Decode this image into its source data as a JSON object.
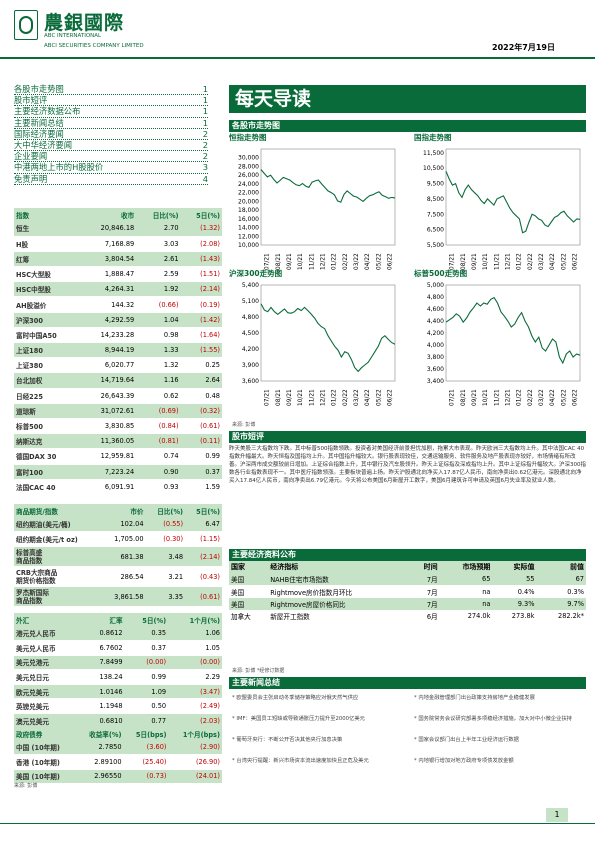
{
  "header": {
    "brand_cn": "農銀國際",
    "brand_en1": "ABC INTERNATIONAL",
    "brand_en2": "ABCI SECURITIES COMPANY LIMITED",
    "date": "2022年7月19日"
  },
  "toc": [
    {
      "t": "各股市走势图",
      "p": "1"
    },
    {
      "t": "股市短评",
      "p": "1"
    },
    {
      "t": "主要经济数据公布",
      "p": "1"
    },
    {
      "t": "主要新闻总结",
      "p": "1"
    },
    {
      "t": "国际经济要闻",
      "p": "2"
    },
    {
      "t": "大中华经济要闻",
      "p": "2"
    },
    {
      "t": "企业要闻",
      "p": "2"
    },
    {
      "t": "中港两地上市的H股股价",
      "p": "3"
    },
    {
      "t": "免责声明",
      "p": "4"
    }
  ],
  "title": "每天导读",
  "indices": {
    "headers": [
      "指数",
      "收市",
      "日比(%)",
      "5日(%)"
    ],
    "rows": [
      [
        "恒生",
        "20,846.18",
        "2.70",
        "(1.32)"
      ],
      [
        "H股",
        "7,168.89",
        "3.03",
        "(2.08)"
      ],
      [
        "红筹",
        "3,804.54",
        "2.61",
        "(1.43)"
      ],
      [
        "HSC大型股",
        "1,888.47",
        "2.59",
        "(1.51)"
      ],
      [
        "HSC中型股",
        "4,264.31",
        "1.92",
        "(2.14)"
      ],
      [
        "AH股溢价",
        "144.32",
        "(0.66)",
        "(0.19)"
      ],
      [
        "沪深300",
        "4,292.59",
        "1.04",
        "(1.42)"
      ],
      [
        "富时中国A50",
        "14,233.28",
        "0.98",
        "(1.64)"
      ],
      [
        "上证180",
        "8,944.19",
        "1.33",
        "(1.55)"
      ],
      [
        "上证380",
        "6,020.77",
        "1.32",
        "0.25"
      ],
      [
        "台北加权",
        "14,719.64",
        "1.16",
        "2.64"
      ],
      [
        "日经225",
        "26,643.39",
        "0.62",
        "0.48"
      ],
      [
        "道琼斯",
        "31,072.61",
        "(0.69)",
        "(0.32)"
      ],
      [
        "标普500",
        "3,830.85",
        "(0.84)",
        "(0.61)"
      ],
      [
        "纳斯达克",
        "11,360.05",
        "(0.81)",
        "(0.11)"
      ],
      [
        "德国DAX 30",
        "12,959.81",
        "0.74",
        "0.99"
      ],
      [
        "富时100",
        "7,223.24",
        "0.90",
        "0.37"
      ],
      [
        "法国CAC 40",
        "6,091.91",
        "0.93",
        "1.59"
      ]
    ]
  },
  "commodities": {
    "headers": [
      "商品期货/指数",
      "市价",
      "日比(%)",
      "5日(%)"
    ],
    "rows": [
      [
        "纽约期油(美元/桶)",
        "102.04",
        "(0.55)",
        "6.47"
      ],
      [
        "纽约期金(美元/t oz)",
        "1,705.00",
        "(0.30)",
        "(1.15)"
      ],
      [
        "标普高盛\n商品指数",
        "681.38",
        "3.48",
        "(2.14)"
      ],
      [
        "CRB大宗商品\n期货价格指数",
        "286.54",
        "3.21",
        "(0.43)"
      ],
      [
        "罗杰斯国际\n商品指数",
        "3,861.58",
        "3.35",
        "(0.61)"
      ]
    ]
  },
  "fx": {
    "headers": [
      "外汇",
      "汇率",
      "5日(%)",
      "1个月(%)"
    ],
    "rows": [
      [
        "港元兑人民币",
        "0.8612",
        "0.35",
        "1.06"
      ],
      [
        "美元兑人民币",
        "6.7602",
        "0.37",
        "1.05"
      ],
      [
        "美元兑港元",
        "7.8499",
        "(0.00)",
        "(0.00)"
      ],
      [
        "美元兑日元",
        "138.24",
        "0.99",
        "2.29"
      ],
      [
        "欧元兑美元",
        "1.0146",
        "1.09",
        "(3.47)"
      ],
      [
        "英镑兑美元",
        "1.1948",
        "0.50",
        "(2.49)"
      ],
      [
        "澳元兑美元",
        "0.6810",
        "0.77",
        "(2.03)"
      ]
    ]
  },
  "bonds": {
    "headers": [
      "政府债券",
      "收益率(%)",
      "5日(bps)",
      "1个月(bps)"
    ],
    "rows": [
      [
        "中国 (10年期)",
        "2.7850",
        "(3.60)",
        "(2.90)"
      ],
      [
        "香港 (10年期)",
        "2.89100",
        "(25.40)",
        "(26.90)"
      ],
      [
        "美国 (10年期)",
        "2.96550",
        "(0.73)",
        "(24.01)"
      ]
    ]
  },
  "left_note": "来源: 彭博",
  "market_section": "各股市走势图",
  "charts": [
    {
      "title": "恒指走势图",
      "ylim": [
        10000,
        32000
      ],
      "yticks": [
        "30,000",
        "28,000",
        "26,000",
        "24,000",
        "22,000",
        "20,000",
        "18,000",
        "16,000",
        "14,000",
        "12,000",
        "10,000"
      ],
      "xticks": [
        "07/21",
        "08/21",
        "09/21",
        "10/21",
        "11/21",
        "12/21",
        "01/22",
        "02/22",
        "03/22",
        "04/22",
        "05/22",
        "06/22"
      ],
      "values": [
        27300,
        26400,
        25600,
        26000,
        25000,
        24200,
        24800,
        25500,
        25200,
        24900,
        24300,
        23800,
        23600,
        24100,
        23500,
        23200,
        24400,
        24700,
        24900,
        24000,
        23200,
        22400,
        22000,
        21500,
        20100,
        19800,
        21600,
        22400,
        21800,
        21200,
        21000,
        20500,
        20000,
        20700,
        21300,
        21500,
        21900,
        22200,
        21400,
        21100,
        20700,
        20900,
        20800
      ]
    },
    {
      "title": "国指走势图",
      "ylim": [
        5500,
        11750
      ],
      "yticks": [
        "11,500",
        "10,500",
        "9,500",
        "8,500",
        "7,500",
        "6,500",
        "5,500"
      ],
      "xticks": [
        "07/21",
        "08/21",
        "09/21",
        "10/21",
        "11/21",
        "12/21",
        "01/22",
        "02/22",
        "03/22",
        "04/22",
        "05/22",
        "06/22"
      ],
      "values": [
        10300,
        9800,
        9400,
        9500,
        8900,
        8600,
        9100,
        9400,
        9100,
        8900,
        8700,
        8400,
        8200,
        8500,
        8300,
        8100,
        8500,
        8600,
        8700,
        8300,
        7900,
        7600,
        7400,
        7200,
        6300,
        6400,
        7000,
        7500,
        7400,
        7200,
        7100,
        6800,
        6700,
        7000,
        7300,
        7400,
        7600,
        7700,
        7400,
        7200,
        7000,
        7200,
        7170
      ]
    },
    {
      "title": "沪深300走势图",
      "ylim": [
        3600,
        5400
      ],
      "yticks": [
        "5,400",
        "5,100",
        "4,800",
        "4,500",
        "4,200",
        "3,900",
        "3,600"
      ],
      "xticks": [
        "07/21",
        "08/21",
        "09/21",
        "10/21",
        "11/21",
        "12/21",
        "01/22",
        "02/22",
        "03/22",
        "04/22",
        "05/22",
        "06/22"
      ],
      "values": [
        5050,
        4930,
        4900,
        4980,
        4900,
        4850,
        4900,
        4950,
        4880,
        4870,
        4900,
        4960,
        4920,
        4980,
        4920,
        4850,
        4780,
        4680,
        4620,
        4580,
        4450,
        4350,
        4250,
        4180,
        4050,
        4150,
        4120,
        4000,
        3850,
        3780,
        3850,
        3900,
        3950,
        4050,
        4150,
        4250,
        4400,
        4450,
        4380,
        4320,
        4290
      ]
    },
    {
      "title": "标普500走势图",
      "ylim": [
        3400,
        5000
      ],
      "yticks": [
        "5,000",
        "4,800",
        "4,600",
        "4,400",
        "4,200",
        "4,000",
        "3,800",
        "3,600",
        "3,400"
      ],
      "xticks": [
        "07/21",
        "08/21",
        "09/21",
        "10/21",
        "11/21",
        "12/21",
        "01/22",
        "02/22",
        "03/22",
        "04/22",
        "05/22",
        "06/22"
      ],
      "values": [
        4380,
        4420,
        4460,
        4520,
        4480,
        4380,
        4450,
        4550,
        4620,
        4700,
        4650,
        4700,
        4680,
        4760,
        4790,
        4700,
        4550,
        4480,
        4400,
        4300,
        4350,
        4460,
        4540,
        4400,
        4300,
        4150,
        4050,
        4130,
        3950,
        3900,
        4000,
        4100,
        4050,
        3800,
        3700,
        3850,
        3900,
        3800,
        3850,
        3830
      ]
    }
  ],
  "chart_note": "来源: 彭博",
  "comment_section": "股市短评",
  "comment": "昨天美股三大指数均下跌。其中标普500指数领跌。投资者对美国经济前景担忧加剧，拖累大市表现。昨天欧洲三大指数均上升。其中法国CAC 40指数升幅最大。昨天恒指及国指均上升。其中国指升幅较大。银行股表现较佳，交通运输服务、软件服务及地产股表现亦较好，市场情绪有所改善。沪深两市成交额较前日增加。上证综合指数上升，其中银行及汽车股领升。昨天上证综指及深成指均上升。其中上证综指升幅较大。沪深300指数各行业指数表现不一。其中医疗指数领涨。主要板块普遍上扬。昨天沪股通北向净买入17.87亿人民币，南向净卖出0.62亿港元。深股通北向净买入17.84亿人民币，南向净卖出6.79亿港元。今天将公布美国6月新屋开工数字，美国6月建筑许可申请及英国6月失业率及就业人数。",
  "econ_section": "主要经济资料公布",
  "econ": {
    "headers": [
      "国家",
      "经济指标",
      "时间",
      "市场预期",
      "实际值",
      "前值"
    ],
    "rows": [
      [
        "美国",
        "NAHB住宅市场指数",
        "7月",
        "65",
        "55",
        "67"
      ],
      [
        "美国",
        "Rightmove房价指数月环比",
        "7月",
        "na",
        "0.4%",
        "0.3%"
      ],
      [
        "美国",
        "Rightmove房屋价格同比",
        "7月",
        "na",
        "9.3%",
        "9.7%"
      ],
      [
        "加拿大",
        "新屋开工指数",
        "6月",
        "274.0k",
        "273.8k",
        "282.2k*"
      ]
    ]
  },
  "econ_note": "来源: 彭博   *经修订数据",
  "news_section": "主要新闻总结",
  "news_left": [
    "欧盟委员会主张启动冬季储存策略应对俄天然气供应",
    "IMF：美国员工短缺或导致通胀压力提升至2000亿美元",
    "葡萄牙央行：不断公开否决其他央行加息决策",
    "台湾央行提醒：新兴市场资本流出速度加快且正危及美元"
  ],
  "news_right": [
    "内地金融管理部门出台政策支持房地产业稳健发展",
    "国务院常务会议研究部署多项稳经济措施，加大对中小微企业扶持",
    "国家会议部门出台上半年工业经济运行数据",
    "内地银行增加对地方政府专项债发放金额"
  ],
  "page": "1"
}
